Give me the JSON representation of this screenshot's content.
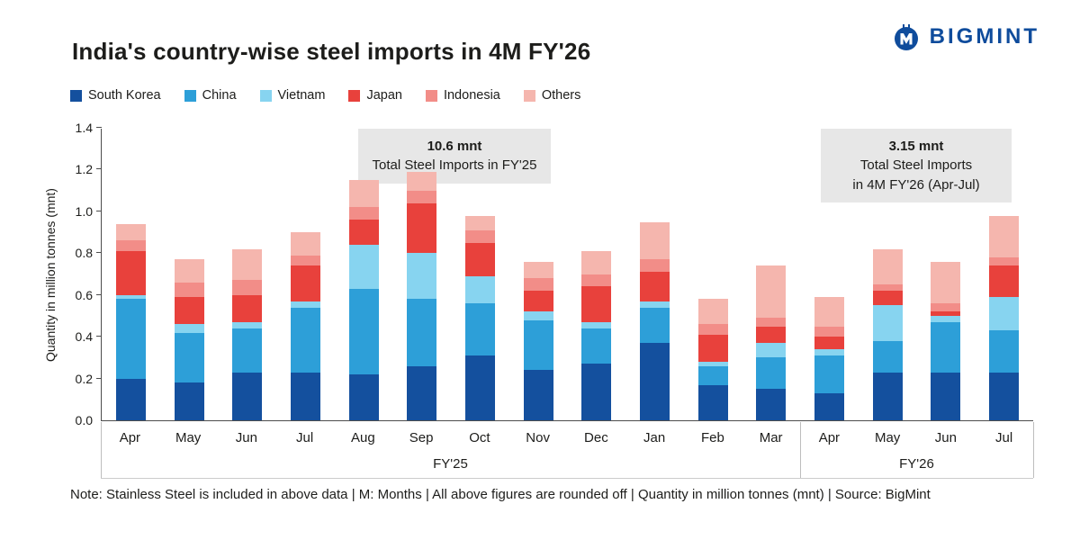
{
  "header": {
    "title": "India's country-wise steel imports in 4M FY'26",
    "brand": "BIGMINT"
  },
  "chart_data": {
    "type": "bar",
    "stacked": true,
    "title": "India's country-wise steel imports in 4M FY'26",
    "ylabel": "Quantity in million tonnes (mnt)",
    "ylim": [
      0,
      1.4
    ],
    "yticks": [
      0,
      0.2,
      0.4,
      0.6,
      0.8,
      1.0,
      1.2,
      1.4
    ],
    "grid": false,
    "legend_position": "top",
    "categories": [
      "Apr",
      "May",
      "Jun",
      "Jul",
      "Aug",
      "Sep",
      "Oct",
      "Nov",
      "Dec",
      "Jan",
      "Feb",
      "Mar",
      "Apr",
      "May",
      "Jun",
      "Jul"
    ],
    "groups": [
      {
        "label": "FY'25",
        "span": 12
      },
      {
        "label": "FY'26",
        "span": 4
      }
    ],
    "series": [
      {
        "name": "South Korea",
        "color": "#14509E",
        "values": [
          0.2,
          0.18,
          0.23,
          0.23,
          0.22,
          0.26,
          0.31,
          0.24,
          0.27,
          0.37,
          0.17,
          0.15,
          0.13,
          0.23,
          0.23,
          0.23
        ]
      },
      {
        "name": "China",
        "color": "#2D9FD8",
        "values": [
          0.38,
          0.24,
          0.21,
          0.31,
          0.41,
          0.32,
          0.25,
          0.24,
          0.17,
          0.17,
          0.09,
          0.15,
          0.18,
          0.15,
          0.24,
          0.2
        ]
      },
      {
        "name": "Vietnam",
        "color": "#87D4F0",
        "values": [
          0.02,
          0.04,
          0.03,
          0.03,
          0.21,
          0.22,
          0.13,
          0.04,
          0.03,
          0.03,
          0.02,
          0.07,
          0.03,
          0.17,
          0.03,
          0.16
        ]
      },
      {
        "name": "Japan",
        "color": "#E8413C",
        "values": [
          0.21,
          0.13,
          0.13,
          0.17,
          0.12,
          0.24,
          0.16,
          0.1,
          0.17,
          0.14,
          0.13,
          0.08,
          0.06,
          0.07,
          0.02,
          0.15
        ]
      },
      {
        "name": "Indonesia",
        "color": "#F28D88",
        "values": [
          0.05,
          0.07,
          0.07,
          0.05,
          0.06,
          0.06,
          0.06,
          0.06,
          0.06,
          0.06,
          0.05,
          0.04,
          0.05,
          0.03,
          0.04,
          0.04
        ]
      },
      {
        "name": "Others",
        "color": "#F5B6AE",
        "values": [
          0.08,
          0.11,
          0.15,
          0.11,
          0.13,
          0.09,
          0.07,
          0.08,
          0.11,
          0.18,
          0.12,
          0.25,
          0.14,
          0.17,
          0.2,
          0.2
        ]
      }
    ],
    "totals": {
      "fy25": "10.6 mnt",
      "fy26_4m": "3.15 mnt"
    },
    "annotations": [
      {
        "bold": "10.6 mnt",
        "lines": [
          "Total Steel Imports in FY'25"
        ]
      },
      {
        "bold": "3.15 mnt",
        "lines": [
          "Total Steel Imports",
          "in 4M FY'26 (Apr-Jul)"
        ]
      }
    ]
  },
  "footer": {
    "note": "Note: Stainless Steel is included in above data | M: Months | All above figures are rounded off | Quantity in million tonnes (mnt) | Source: BigMint"
  }
}
